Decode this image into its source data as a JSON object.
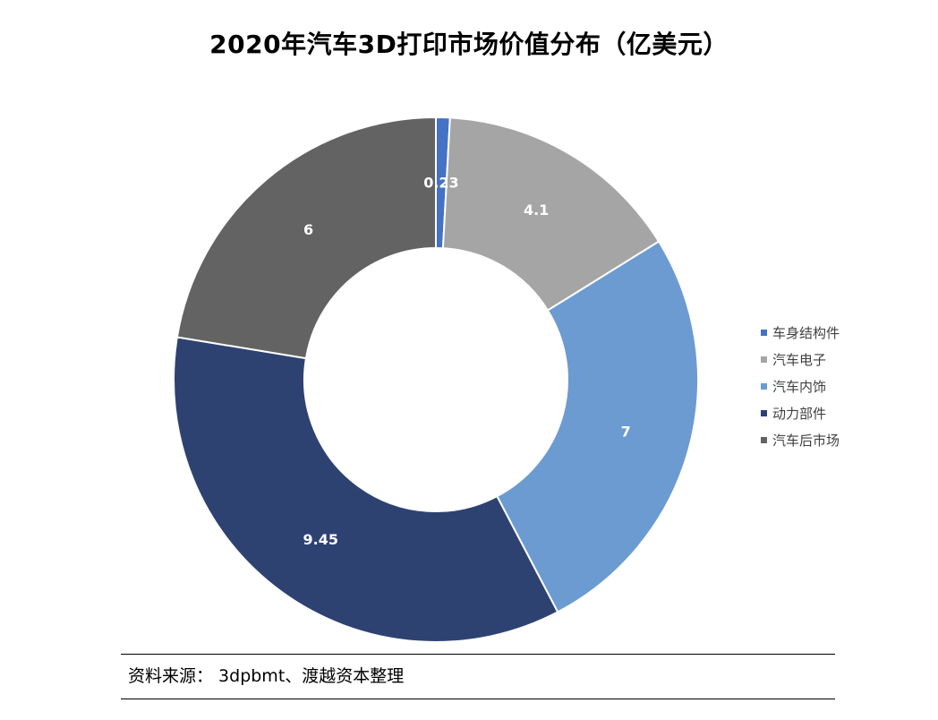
{
  "chart_data": {
    "type": "pie",
    "variant": "donut",
    "title": "2020年汽车3D打印市场价值分布（亿美元）",
    "categories": [
      "车身结构件",
      "汽车电子",
      "汽车内饰",
      "动力部件",
      "汽车后市场"
    ],
    "values": [
      0.23,
      4.1,
      7,
      9.45,
      6
    ],
    "data_labels": [
      "0.23",
      "4.1",
      "7",
      "9.45",
      "6"
    ],
    "colors": [
      "#4472C4",
      "#A5A5A5",
      "#6B9BD1",
      "#2E4272",
      "#636363"
    ],
    "legend_position": "right"
  },
  "source": "资料来源： 3dpbmt、渡越资本整理"
}
